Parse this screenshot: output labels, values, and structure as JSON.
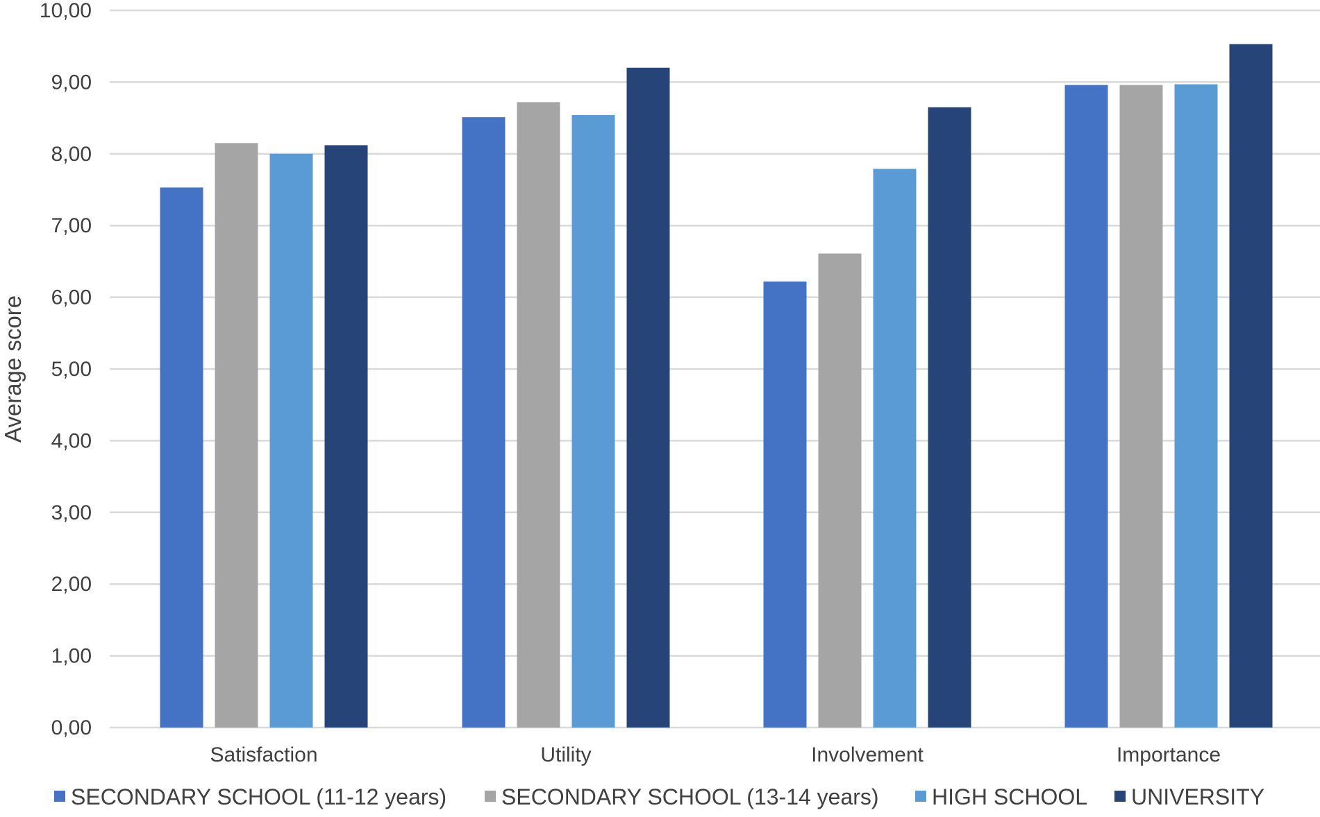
{
  "chart_data": {
    "type": "bar",
    "title": "",
    "xlabel": "",
    "ylabel": "Average score",
    "ylim": [
      0,
      10
    ],
    "yticks": [
      "0,00",
      "1,00",
      "2,00",
      "3,00",
      "4,00",
      "5,00",
      "6,00",
      "7,00",
      "8,00",
      "9,00",
      "10,00"
    ],
    "grid": "horizontal",
    "legend_position": "bottom",
    "categories": [
      "Satisfaction",
      "Utility",
      "Involvement",
      "Importance"
    ],
    "series": [
      {
        "name": "SECONDARY SCHOOL (11-12 years)",
        "color": "#4472C4",
        "values": [
          7.53,
          8.51,
          6.22,
          8.96
        ]
      },
      {
        "name": "SECONDARY SCHOOL (13-14 years)",
        "color": "#A5A5A5",
        "values": [
          8.15,
          8.72,
          6.61,
          8.96
        ]
      },
      {
        "name": "HIGH SCHOOL",
        "color": "#5B9BD5",
        "values": [
          8.0,
          8.54,
          7.79,
          8.97
        ]
      },
      {
        "name": "UNIVERSITY",
        "color": "#264478",
        "values": [
          8.12,
          9.2,
          8.65,
          9.53
        ]
      }
    ]
  },
  "colors": {
    "gridline": "#D9D9D9",
    "text": "#404040",
    "background": "#FFFFFF"
  }
}
